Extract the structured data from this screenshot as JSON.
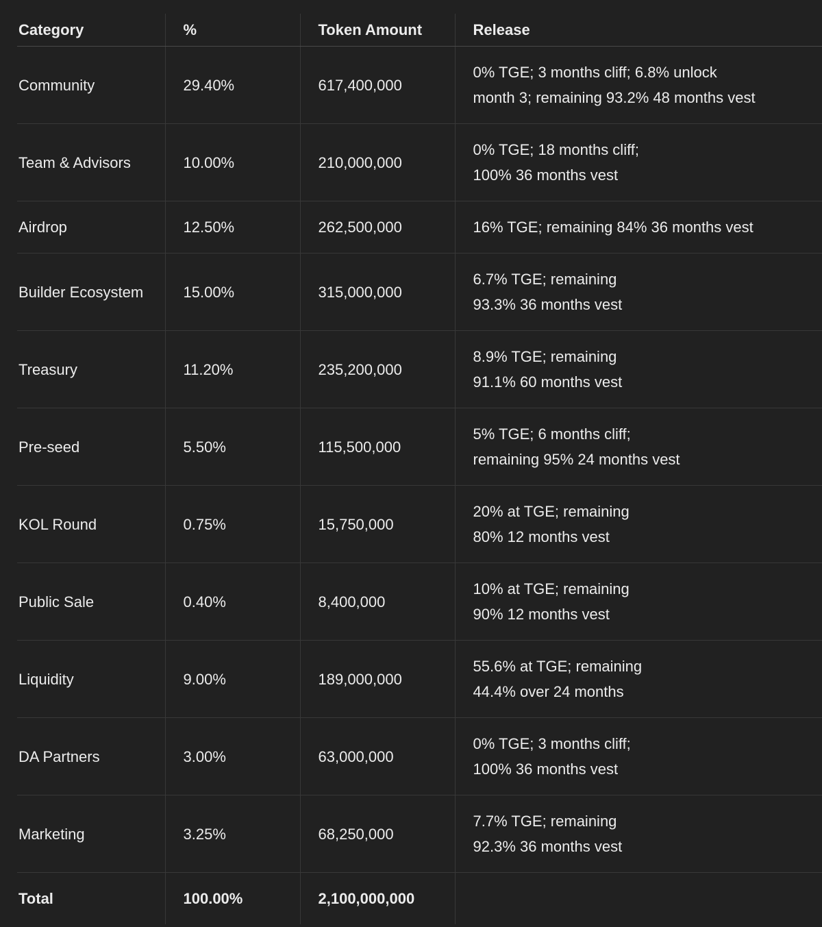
{
  "table": {
    "header": [
      "Category",
      "%",
      "Token Amount",
      "Release"
    ],
    "rows": [
      [
        "Community",
        "29.40%",
        "617,400,000",
        [
          "0% TGE; 3 months cliff; 6.8% unlock",
          "month 3; remaining 93.2% 48 months vest"
        ]
      ],
      [
        "Team & Advisors",
        "10.00%",
        "210,000,000",
        [
          "0% TGE; 18 months cliff;",
          "100% 36 months vest"
        ]
      ],
      [
        "Airdrop",
        "12.50%",
        "262,500,000",
        [
          "16% TGE; remaining 84% 36 months vest"
        ]
      ],
      [
        "Builder Ecosystem",
        "15.00%",
        "315,000,000",
        [
          "6.7% TGE; remaining",
          "93.3% 36 months vest"
        ]
      ],
      [
        "Treasury",
        "11.20%",
        "235,200,000",
        [
          "8.9% TGE; remaining",
          "91.1% 60 months vest"
        ]
      ],
      [
        "Pre-seed",
        "5.50%",
        "115,500,000",
        [
          "5% TGE; 6 months cliff;",
          "remaining 95% 24 months vest"
        ]
      ],
      [
        "KOL Round",
        "0.75%",
        "15,750,000",
        [
          "20% at TGE; remaining",
          "80% 12 months vest"
        ]
      ],
      [
        "Public Sale",
        "0.40%",
        "8,400,000",
        [
          "10% at TGE; remaining",
          "90% 12 months vest"
        ]
      ],
      [
        "Liquidity",
        "9.00%",
        "189,000,000",
        [
          "55.6% at TGE; remaining",
          "44.4% over 24 months"
        ]
      ],
      [
        "DA Partners",
        "3.00%",
        "63,000,000",
        [
          "0% TGE; 3 months cliff;",
          "100% 36 months vest"
        ]
      ],
      [
        "Marketing",
        "3.25%",
        "68,250,000",
        [
          "7.7% TGE; remaining",
          "92.3% 36 months vest"
        ]
      ],
      [
        "Total",
        "100.00%",
        "2,100,000,000"
      ]
    ]
  }
}
